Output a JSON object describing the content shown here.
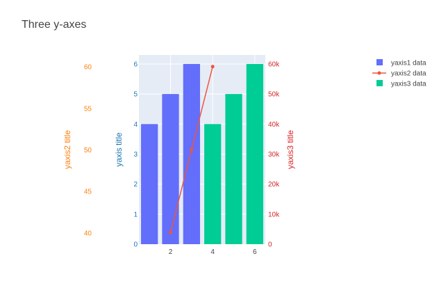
{
  "chart_data": {
    "type": "bar",
    "title": "Three y-axes",
    "x": [
      1,
      2,
      3,
      4,
      5,
      6
    ],
    "xticks": [
      "2",
      "4",
      "6"
    ],
    "xlim": [
      0.5,
      6.5
    ],
    "series": [
      {
        "name": "yaxis1 data",
        "type": "bar",
        "x": [
          1,
          2,
          3
        ],
        "values": [
          4,
          5,
          6
        ],
        "axis": "yaxis",
        "color": "#636efa"
      },
      {
        "name": "yaxis2 data",
        "type": "line",
        "x": [
          2,
          3,
          4
        ],
        "values": [
          40,
          50,
          60
        ],
        "axis": "yaxis2",
        "color": "#ef553b"
      },
      {
        "name": "yaxis3 data",
        "type": "bar",
        "x": [
          4,
          5,
          6
        ],
        "values": [
          40000,
          50000,
          60000
        ],
        "axis": "yaxis3",
        "color": "#00cc96"
      }
    ],
    "yaxis": {
      "title": "yaxis title",
      "color": "#1f77b4",
      "range": [
        0,
        6.3
      ],
      "ticks": [
        "0",
        "1",
        "2",
        "3",
        "4",
        "5",
        "6"
      ]
    },
    "yaxis2": {
      "title": "yaxis2 title",
      "color": "#ff7f0e",
      "range": [
        38.6,
        61.4
      ],
      "ticks": [
        "40",
        "45",
        "50",
        "55",
        "60"
      ]
    },
    "yaxis3": {
      "title": "yaxis3 title",
      "color": "#d62728",
      "range": [
        0,
        63000
      ],
      "ticks": [
        "0",
        "10k",
        "20k",
        "30k",
        "40k",
        "50k",
        "60k"
      ]
    },
    "legend_position": "top-right",
    "plot_background": "#e5ecf6"
  }
}
